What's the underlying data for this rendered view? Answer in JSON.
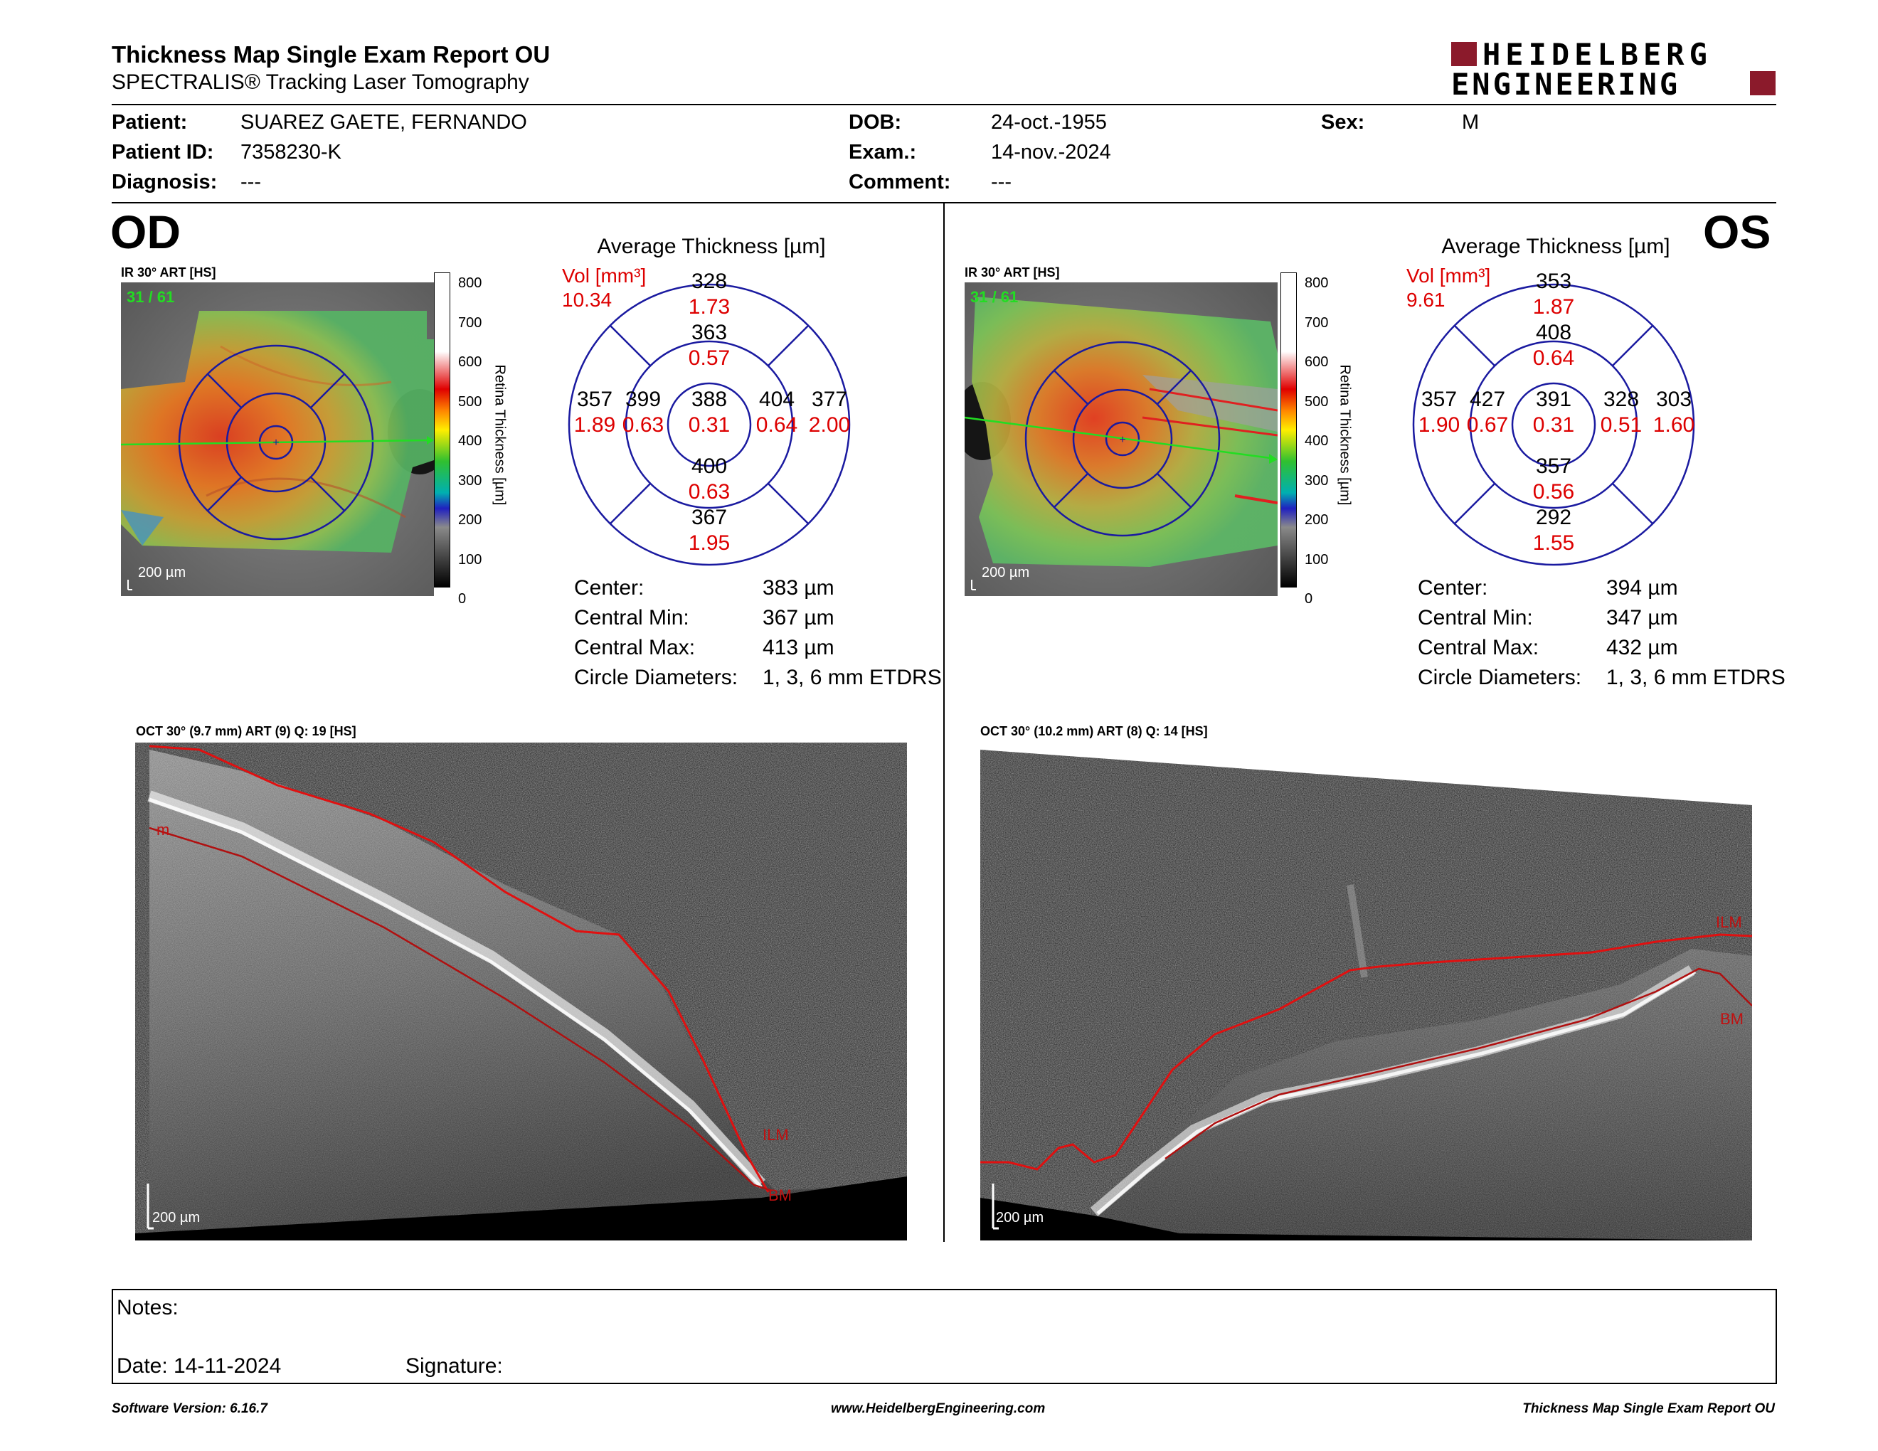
{
  "header": {
    "title": "Thickness Map Single Exam Report OU",
    "subtitle": "SPECTRALIS® Tracking Laser Tomography",
    "logo_line1": "HEIDELBERG",
    "logo_line2": "ENGINEERING"
  },
  "patient": {
    "patient_label": "Patient:",
    "patient_value": "SUAREZ GAETE, FERNANDO",
    "id_label": "Patient ID:",
    "id_value": "7358230-K",
    "diagnosis_label": "Diagnosis:",
    "diagnosis_value": "---",
    "dob_label": "DOB:",
    "dob_value": "24-oct.-1955",
    "exam_label": "Exam.:",
    "exam_value": "14-nov.-2024",
    "comment_label": "Comment:",
    "comment_value": "---",
    "sex_label": "Sex:",
    "sex_value": "M"
  },
  "od": {
    "eye": "OD",
    "ir_title": "IR 30° ART [HS]",
    "frames": "31 / 61",
    "scale": "200 µm",
    "colorbar_title": "Retina Thickness [µm]",
    "colorbar_ticks": [
      "800",
      "700",
      "600",
      "500",
      "400",
      "300",
      "200",
      "100",
      "0"
    ],
    "avg_title": "Average Thickness [µm]",
    "vol_label": "Vol [mm³]",
    "vol_value": "10.34",
    "grid": {
      "center": {
        "t": "388",
        "v": "0.31"
      },
      "inner_sup": {
        "t": "363",
        "v": "0.57"
      },
      "inner_inf": {
        "t": "400",
        "v": "0.63"
      },
      "inner_left": {
        "t": "399",
        "v": "0.63"
      },
      "inner_right": {
        "t": "404",
        "v": "0.64"
      },
      "outer_sup": {
        "t": "328",
        "v": "1.73"
      },
      "outer_inf": {
        "t": "367",
        "v": "1.95"
      },
      "outer_left": {
        "t": "357",
        "v": "1.89"
      },
      "outer_right": {
        "t": "377",
        "v": "2.00"
      }
    },
    "stats": {
      "center_label": "Center:",
      "center_value": "383 µm",
      "min_label": "Central Min:",
      "min_value": "367 µm",
      "max_label": "Central Max:",
      "max_value": "413 µm",
      "diam_label": "Circle Diameters:",
      "diam_value": "1, 3, 6 mm ETDRS"
    },
    "oct_title": "OCT 30° (9.7 mm) ART (9) Q: 19 [HS]",
    "oct_ilm": "ILM",
    "oct_bm": "BM",
    "oct_m": "m",
    "oct_scale": "200 µm"
  },
  "os": {
    "eye": "OS",
    "ir_title": "IR 30° ART [HS]",
    "frames": "31 / 61",
    "scale": "200 µm",
    "colorbar_title": "Retina Thickness [µm]",
    "colorbar_ticks": [
      "800",
      "700",
      "600",
      "500",
      "400",
      "300",
      "200",
      "100",
      "0"
    ],
    "avg_title": "Average Thickness [µm]",
    "vol_label": "Vol [mm³]",
    "vol_value": "9.61",
    "grid": {
      "center": {
        "t": "391",
        "v": "0.31"
      },
      "inner_sup": {
        "t": "408",
        "v": "0.64"
      },
      "inner_inf": {
        "t": "357",
        "v": "0.56"
      },
      "inner_left": {
        "t": "427",
        "v": "0.67"
      },
      "inner_right": {
        "t": "328",
        "v": "0.51"
      },
      "outer_sup": {
        "t": "353",
        "v": "1.87"
      },
      "outer_inf": {
        "t": "292",
        "v": "1.55"
      },
      "outer_left": {
        "t": "357",
        "v": "1.90"
      },
      "outer_right": {
        "t": "303",
        "v": "1.60"
      }
    },
    "stats": {
      "center_label": "Center:",
      "center_value": "394 µm",
      "min_label": "Central Min:",
      "min_value": "347 µm",
      "max_label": "Central Max:",
      "max_value": "432 µm",
      "diam_label": "Circle Diameters:",
      "diam_value": "1, 3, 6 mm ETDRS"
    },
    "oct_title": "OCT 30° (10.2 mm) ART (8) Q: 14 [HS]",
    "oct_ilm": "ILM",
    "oct_bm": "BM",
    "oct_scale": "200 µm"
  },
  "notes": {
    "notes_label": "Notes:",
    "date_label": "Date: 14-11-2024",
    "signature_label": "Signature:"
  },
  "footer": {
    "software": "Software Version: 6.16.7",
    "website": "www.HeidelbergEngineering.com",
    "report_name": "Thickness Map Single Exam Report OU"
  },
  "colors": {
    "grid_lines": "#1a1aa0",
    "volume_red": "#dd0000",
    "logo_red": "#8b1a2b",
    "scan_line": "#22dd22",
    "ilm_line": "#e01010"
  }
}
